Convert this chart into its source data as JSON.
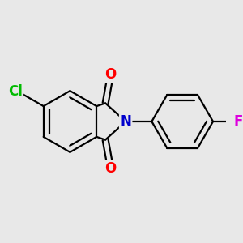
{
  "bg_color": "#e8e8e8",
  "bond_color": "#000000",
  "bond_width": 1.6,
  "dbo": 0.048,
  "atom_colors": {
    "O": "#ff0000",
    "N": "#0000cc",
    "Cl": "#00bb00",
    "F": "#dd00dd"
  },
  "font_size": 12
}
